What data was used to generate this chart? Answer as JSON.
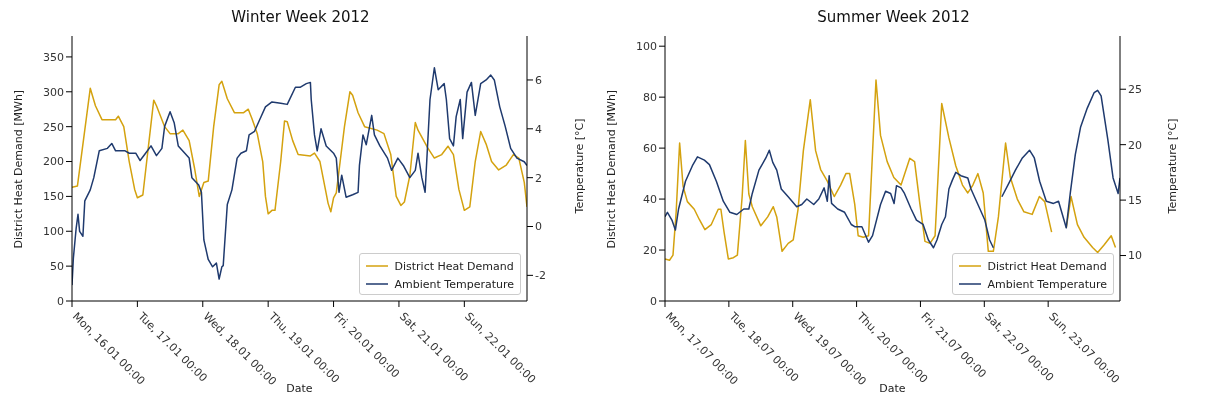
{
  "chart_data": [
    {
      "type": "line",
      "title": "Winter Week 2012",
      "xlabel": "Date",
      "ylabel": "District Heat Demand [MWh]",
      "y2label": "Temperature [°C]",
      "legend": "bottom right",
      "xlim": [
        "2012-01-16T00:00",
        "2012-01-22T23:00"
      ],
      "xticks": [
        {
          "value": "2012-01-16T00:00",
          "label": "Mon, 16.01 00:00"
        },
        {
          "value": "2012-01-17T00:00",
          "label": "Tue, 17.01 00:00"
        },
        {
          "value": "2012-01-18T00:00",
          "label": "Wed, 18.01 00:00"
        },
        {
          "value": "2012-01-19T00:00",
          "label": "Thu, 19.01 00:00"
        },
        {
          "value": "2012-01-20T00:00",
          "label": "Fri, 20.01 00:00"
        },
        {
          "value": "2012-01-21T00:00",
          "label": "Sat, 21.01 00:00"
        },
        {
          "value": "2012-01-22T00:00",
          "label": "Sun, 22.01 00:00"
        }
      ],
      "ylim": [
        0,
        380
      ],
      "yticks": [
        0,
        50,
        100,
        150,
        200,
        250,
        300,
        350
      ],
      "y2lim": [
        -3.05,
        7.8
      ],
      "y2ticks": [
        -2,
        0,
        2,
        4,
        6
      ],
      "series": [
        {
          "name": "District Heat Demand",
          "color": "#d4a20f",
          "x": [
            "2012-01-16T00:00",
            "2012-01-16T02:00",
            "2012-01-16T06:42",
            "2012-01-16T08:36",
            "2012-01-16T11:00",
            "2012-01-16T16:00",
            "2012-01-16T17:00",
            "2012-01-16T19:00",
            "2012-01-16T21:00",
            "2012-01-16T23:00",
            "2012-01-17T00:00",
            "2012-01-17T02:00",
            "2012-01-17T06:00",
            "2012-01-17T07:00",
            "2012-01-17T10:00",
            "2012-01-17T12:00",
            "2012-01-17T15:00",
            "2012-01-17T16:42",
            "2012-01-17T19:00",
            "2012-01-17T21:00",
            "2012-01-17T22:42",
            "2012-01-18T00:24",
            "2012-01-18T02:00",
            "2012-01-18T04:00",
            "2012-01-18T06:00",
            "2012-01-18T07:00",
            "2012-01-18T09:00",
            "2012-01-18T11:36",
            "2012-01-18T15:00",
            "2012-01-18T16:42",
            "2012-01-18T18:00",
            "2012-01-18T20:00",
            "2012-01-18T22:00",
            "2012-01-18T23:00",
            "2012-01-19T00:00",
            "2012-01-19T01:24",
            "2012-01-19T02:30",
            "2012-01-19T04:36",
            "2012-01-19T06:00",
            "2012-01-19T07:00",
            "2012-01-19T09:00",
            "2012-01-19T11:00",
            "2012-01-19T15:30",
            "2012-01-19T17:00",
            "2012-01-19T19:00",
            "2012-01-19T21:00",
            "2012-01-19T22:00",
            "2012-01-19T23:00",
            "2012-01-20T00:00",
            "2012-01-20T01:00",
            "2012-01-20T04:00",
            "2012-01-20T06:00",
            "2012-01-20T07:00",
            "2012-01-20T09:00",
            "2012-01-20T11:24",
            "2012-01-20T16:00",
            "2012-01-20T18:30",
            "2012-01-20T21:00",
            "2012-01-20T23:00",
            "2012-01-21T00:42",
            "2012-01-21T02:00",
            "2012-01-21T04:00",
            "2012-01-21T06:00",
            "2012-01-21T07:00",
            "2012-01-21T10:30",
            "2012-01-21T13:00",
            "2012-01-21T15:42",
            "2012-01-21T18:00",
            "2012-01-21T20:00",
            "2012-01-21T22:00",
            "2012-01-22T00:00",
            "2012-01-22T02:00",
            "2012-01-22T04:00",
            "2012-01-22T06:00",
            "2012-01-22T08:00",
            "2012-01-22T10:00",
            "2012-01-22T12:36",
            "2012-01-22T15:24",
            "2012-01-22T18:00",
            "2012-01-22T20:00",
            "2012-01-22T22:00",
            "2012-01-22T23:00"
          ],
          "values": [
            163,
            165,
            305,
            280,
            260,
            260,
            265,
            250,
            200,
            160,
            148,
            152,
            288,
            280,
            250,
            240,
            240,
            245,
            230,
            190,
            150,
            170,
            172,
            250,
            310,
            315,
            290,
            270,
            270,
            275,
            262,
            240,
            200,
            150,
            125,
            130,
            130,
            200,
            258,
            257,
            230,
            210,
            208,
            212,
            200,
            160,
            140,
            128,
            148,
            155,
            250,
            300,
            295,
            270,
            250,
            245,
            240,
            210,
            150,
            137,
            142,
            180,
            256,
            245,
            220,
            205,
            210,
            222,
            210,
            160,
            130,
            135,
            200,
            243,
            225,
            200,
            188,
            195,
            210,
            205,
            170,
            135
          ]
        },
        {
          "name": "Ambient Temperature",
          "color": "#1f3a6e",
          "axis": "y2",
          "x": [
            "2012-01-16T00:00",
            "2012-01-16T00:30",
            "2012-01-16T01:30",
            "2012-01-16T02:12",
            "2012-01-16T02:48",
            "2012-01-16T04:00",
            "2012-01-16T04:42",
            "2012-01-16T06:42",
            "2012-01-16T08:00",
            "2012-01-16T10:00",
            "2012-01-16T13:00",
            "2012-01-16T14:36",
            "2012-01-16T16:00",
            "2012-01-16T19:30",
            "2012-01-16T21:00",
            "2012-01-16T23:24",
            "2012-01-17T01:00",
            "2012-01-17T03:00",
            "2012-01-17T05:00",
            "2012-01-17T07:00",
            "2012-01-17T09:00",
            "2012-01-17T10:00",
            "2012-01-17T12:00",
            "2012-01-17T13:30",
            "2012-01-17T15:00",
            "2012-01-17T17:00",
            "2012-01-17T19:00",
            "2012-01-17T20:00",
            "2012-01-17T22:30",
            "2012-01-17T23:30",
            "2012-01-18T00:24",
            "2012-01-18T02:00",
            "2012-01-18T03:36",
            "2012-01-18T05:00",
            "2012-01-18T06:00",
            "2012-01-18T07:00",
            "2012-01-18T07:30",
            "2012-01-18T09:00",
            "2012-01-18T10:42",
            "2012-01-18T12:36",
            "2012-01-18T14:00",
            "2012-01-18T16:00",
            "2012-01-18T17:00",
            "2012-01-18T19:00",
            "2012-01-18T21:00",
            "2012-01-18T23:00",
            "2012-01-19T01:24",
            "2012-01-19T04:36",
            "2012-01-19T07:00",
            "2012-01-19T10:00",
            "2012-01-19T11:42",
            "2012-01-19T14:00",
            "2012-01-19T15:30",
            "2012-01-19T15:48",
            "2012-01-19T17:00",
            "2012-01-19T18:00",
            "2012-01-19T19:24",
            "2012-01-19T21:18",
            "2012-01-20T00:00",
            "2012-01-20T01:00",
            "2012-01-20T02:00",
            "2012-01-20T03:00",
            "2012-01-20T04:36",
            "2012-01-20T07:00",
            "2012-01-20T09:00",
            "2012-01-20T09:30",
            "2012-01-20T10:48",
            "2012-01-20T12:00",
            "2012-01-20T14:00",
            "2012-01-20T15:00",
            "2012-01-20T17:00",
            "2012-01-20T19:48",
            "2012-01-20T21:18",
            "2012-01-20T23:36",
            "2012-01-21T01:36",
            "2012-01-21T04:00",
            "2012-01-21T06:00",
            "2012-01-21T07:00",
            "2012-01-21T08:24",
            "2012-01-21T09:36",
            "2012-01-21T11:24",
            "2012-01-21T13:00",
            "2012-01-21T14:24",
            "2012-01-21T16:36",
            "2012-01-21T17:24",
            "2012-01-21T18:36",
            "2012-01-21T20:00",
            "2012-01-21T21:00",
            "2012-01-21T22:30",
            "2012-01-21T23:24",
            "2012-01-22T01:00",
            "2012-01-22T02:36",
            "2012-01-22T04:00",
            "2012-01-22T06:00",
            "2012-01-22T08:00",
            "2012-01-22T09:42",
            "2012-01-22T11:00",
            "2012-01-22T13:00",
            "2012-01-22T15:00",
            "2012-01-22T17:00",
            "2012-01-22T19:18",
            "2012-01-22T22:00",
            "2012-01-22T23:00"
          ],
          "values": [
            -2.4,
            -1.3,
            -0.1,
            0.5,
            -0.2,
            -0.4,
            1.05,
            1.5,
            2,
            3.1,
            3.2,
            3.4,
            3.1,
            3.1,
            3,
            3,
            2.7,
            3,
            3.3,
            2.9,
            3.2,
            4.1,
            4.7,
            4.25,
            3.3,
            3.05,
            2.8,
            2,
            1.7,
            1.4,
            -0.55,
            -1.35,
            -1.65,
            -1.5,
            -2.15,
            -1.65,
            -1.6,
            0.9,
            1.5,
            2.8,
            3,
            3.1,
            3.75,
            3.9,
            4.4,
            4.9,
            5.1,
            5.05,
            5,
            5.7,
            5.7,
            5.85,
            5.9,
            5.2,
            3.75,
            3.1,
            4,
            3.3,
            3,
            2.8,
            1.4,
            2.1,
            1.2,
            1.3,
            1.4,
            2.5,
            3.75,
            3.35,
            4.55,
            3.75,
            3.3,
            2.8,
            2.3,
            2.8,
            2.5,
            2,
            2.3,
            3,
            2,
            1.4,
            5.2,
            6.5,
            5.6,
            5.85,
            5.2,
            3.6,
            3.3,
            4.5,
            5.2,
            3.6,
            5.5,
            5.9,
            4.55,
            5.85,
            6,
            6.2,
            6,
            4.9,
            4.1,
            3.2,
            2.8,
            2.65,
            2.5
          ]
        }
      ]
    },
    {
      "type": "line",
      "title": "Summer Week 2012",
      "xlabel": "Date",
      "ylabel": "District Heat Demand [MWh]",
      "y2label": "Temperature [°C]",
      "legend": "bottom right",
      "xlim": [
        "2012-07-17T00:00",
        "2012-07-24T03:00"
      ],
      "xticks": [
        {
          "value": "2012-07-17T00:00",
          "label": "Mon, 17.07 00:00"
        },
        {
          "value": "2012-07-18T00:00",
          "label": "Tue, 18.07 00:00"
        },
        {
          "value": "2012-07-19T00:00",
          "label": "Wed, 19.07 00:00"
        },
        {
          "value": "2012-07-20T00:00",
          "label": "Thu, 20.07 00:00"
        },
        {
          "value": "2012-07-21T00:00",
          "label": "Fri, 21.07 00:00"
        },
        {
          "value": "2012-07-22T00:00",
          "label": "Sat, 22.07 00:00"
        },
        {
          "value": "2012-07-23T00:00",
          "label": "Sun, 23.07 00:00"
        }
      ],
      "ylim": [
        0,
        104
      ],
      "yticks": [
        0,
        20,
        40,
        60,
        80,
        100
      ],
      "y2lim": [
        5.9,
        29.8
      ],
      "y2ticks": [
        10,
        15,
        20,
        25
      ],
      "series": [
        {
          "name": "District Heat Demand",
          "color": "#d4a20f",
          "x": [
            "2012-07-17T00:00",
            "2012-07-17T01:42",
            "2012-07-17T03:00",
            "2012-07-17T04:12",
            "2012-07-17T05:30",
            "2012-07-17T06:48",
            "2012-07-17T08:24",
            "2012-07-17T11:00",
            "2012-07-17T12:54",
            "2012-07-17T15:00",
            "2012-07-17T17:24",
            "2012-07-17T20:00",
            "2012-07-17T21:00",
            "2012-07-17T22:12",
            "2012-07-17T23:48",
            "2012-07-18T01:42",
            "2012-07-18T03:12",
            "2012-07-18T05:00",
            "2012-07-18T06:12",
            "2012-07-18T07:30",
            "2012-07-18T08:48",
            "2012-07-18T12:00",
            "2012-07-18T14:36",
            "2012-07-18T16:42",
            "2012-07-18T18:00",
            "2012-07-18T20:00",
            "2012-07-18T22:18",
            "2012-07-19T00:12",
            "2012-07-19T02:00",
            "2012-07-19T04:00",
            "2012-07-19T06:36",
            "2012-07-19T08:36",
            "2012-07-19T10:30",
            "2012-07-19T13:00",
            "2012-07-19T15:36",
            "2012-07-19T18:00",
            "2012-07-19T20:00",
            "2012-07-19T21:24",
            "2012-07-19T23:18",
            "2012-07-20T00:36",
            "2012-07-20T02:30",
            "2012-07-20T04:30",
            "2012-07-20T07:18",
            "2012-07-20T09:00",
            "2012-07-20T11:30",
            "2012-07-20T14:00",
            "2012-07-20T16:42",
            "2012-07-20T20:00",
            "2012-07-20T21:48",
            "2012-07-20T23:48",
            "2012-07-21T01:42",
            "2012-07-21T03:36",
            "2012-07-21T05:30",
            "2012-07-21T08:00",
            "2012-07-21T10:42",
            "2012-07-21T13:18",
            "2012-07-21T15:48",
            "2012-07-21T17:48",
            "2012-07-21T19:42",
            "2012-07-21T21:36",
            "2012-07-21T23:36",
            "2012-07-22T01:30",
            "2012-07-22T03:24",
            "2012-07-22T05:18",
            "2012-07-22T08:00",
            "2012-07-22T09:48",
            "2012-07-22T12:24",
            "2012-07-22T14:54",
            "2012-07-22T18:00",
            "2012-07-22T20:42",
            "2012-07-22T22:42",
            "2012-07-23T01:18",
            "2012-07-23T03:12",
            "2012-07-23T05:00",
            "2012-07-23T06:48",
            "2012-07-23T08:36",
            "2012-07-23T11:00",
            "2012-07-23T13:30",
            "2012-07-23T16:42",
            "2012-07-23T18:36",
            "2012-07-23T21:00",
            "2012-07-23T23:42",
            "2012-07-24T01:18"
          ],
          "values": [
            16.5,
            16,
            18,
            35,
            62,
            45,
            39,
            36,
            32,
            28,
            30,
            36,
            36,
            27,
            16.5,
            17,
            18,
            41,
            63,
            42,
            37,
            29.5,
            33,
            37,
            33,
            19.5,
            22.6,
            24,
            36,
            59,
            79,
            59,
            51.6,
            47,
            41,
            45.5,
            50,
            50,
            38,
            25.6,
            25,
            25.6,
            86.7,
            65,
            54.7,
            48.5,
            45.5,
            56,
            54.7,
            38,
            23.4,
            22.6,
            25.6,
            77.5,
            64,
            53,
            45.5,
            42.4,
            45.5,
            50,
            42.4,
            19.5,
            19.5,
            33,
            62,
            48.5,
            40,
            35,
            34,
            41,
            39,
            27,
            null,
            null,
            28.7,
            41,
            30,
            25,
            21,
            19,
            22,
            25.6,
            21
          ]
        },
        {
          "name": "Ambient Temperature",
          "color": "#1f3a6e",
          "axis": "y2",
          "x": [
            "2012-07-17T00:00",
            "2012-07-17T00:54",
            "2012-07-17T02:36",
            "2012-07-17T03:54",
            "2012-07-17T05:06",
            "2012-07-17T07:42",
            "2012-07-17T10:18",
            "2012-07-17T12:12",
            "2012-07-17T14:48",
            "2012-07-17T16:42",
            "2012-07-17T19:18",
            "2012-07-17T21:54",
            "2012-07-18T00:24",
            "2012-07-18T03:00",
            "2012-07-18T05:36",
            "2012-07-18T07:30",
            "2012-07-18T08:48",
            "2012-07-18T11:18",
            "2012-07-18T13:54",
            "2012-07-18T15:12",
            "2012-07-18T16:30",
            "2012-07-18T18:00",
            "2012-07-18T19:42",
            "2012-07-18T22:18",
            "2012-07-19T01:30",
            "2012-07-19T03:24",
            "2012-07-19T05:18",
            "2012-07-19T07:54",
            "2012-07-19T09:48",
            "2012-07-19T11:48",
            "2012-07-19T13:00",
            "2012-07-19T13:42",
            "2012-07-19T14:36",
            "2012-07-19T16:54",
            "2012-07-19T19:30",
            "2012-07-19T22:00",
            "2012-07-19T23:18",
            "2012-07-20T02:00",
            "2012-07-20T04:30",
            "2012-07-20T06:00",
            "2012-07-20T09:00",
            "2012-07-20T10:54",
            "2012-07-20T12:48",
            "2012-07-20T14:06",
            "2012-07-20T15:00",
            "2012-07-20T16:42",
            "2012-07-20T18:00",
            "2012-07-20T20:30",
            "2012-07-20T22:30",
            "2012-07-21T01:00",
            "2012-07-21T03:00",
            "2012-07-21T04:54",
            "2012-07-21T06:12",
            "2012-07-21T08:00",
            "2012-07-21T09:24",
            "2012-07-21T10:42",
            "2012-07-21T12:00",
            "2012-07-21T13:18",
            "2012-07-21T15:12",
            "2012-07-21T17:48",
            "2012-07-21T19:00",
            "2012-07-21T21:36",
            "2012-07-22T00:12",
            "2012-07-22T02:00",
            "2012-07-22T03:24",
            "2012-07-22T04:18",
            "2012-07-22T06:36",
            "2012-07-22T09:12",
            "2012-07-22T11:42",
            "2012-07-22T14:18",
            "2012-07-22T17:00",
            "2012-07-22T18:48",
            "2012-07-22T20:48",
            "2012-07-22T23:18",
            "2012-07-23T02:00",
            "2012-07-23T03:54",
            "2012-07-23T05:06",
            "2012-07-23T06:48",
            "2012-07-23T08:18",
            "2012-07-23T10:12",
            "2012-07-23T12:12",
            "2012-07-23T14:42",
            "2012-07-23T17:18",
            "2012-07-23T18:36",
            "2012-07-23T19:54",
            "2012-07-23T22:24",
            "2012-07-24T00:24",
            "2012-07-24T02:18",
            "2012-07-24T03:00"
          ],
          "values": [
            13.5,
            13.9,
            13.2,
            12.3,
            14.2,
            16.7,
            18.1,
            18.9,
            18.6,
            18.2,
            16.7,
            14.9,
            13.9,
            13.7,
            14.2,
            14.2,
            15.6,
            17.7,
            18.8,
            19.5,
            18.4,
            17.7,
            16,
            15.3,
            14.4,
            14.6,
            15.1,
            14.6,
            15.1,
            16.1,
            14.9,
            17.2,
            14.7,
            14.2,
            13.9,
            12.8,
            12.6,
            12.6,
            11.2,
            11.8,
            14.6,
            15.8,
            15.6,
            14.7,
            16.3,
            16.1,
            15.6,
            14.2,
            13.2,
            12.8,
            11.4,
            10.7,
            11.4,
            12.8,
            13.5,
            16,
            16.8,
            17.5,
            17.2,
            17,
            16,
            14.6,
            13.2,
            11.4,
            10.7,
            null,
            15.3,
            16.5,
            17.7,
            18.8,
            19.5,
            18.8,
            16.7,
            14.9,
            14.7,
            14.9,
            13.9,
            12.5,
            15.6,
            19.1,
            21.6,
            23.3,
            24.7,
            24.9,
            24.4,
            20.5,
            17,
            15.6,
            17
          ]
        }
      ]
    }
  ]
}
